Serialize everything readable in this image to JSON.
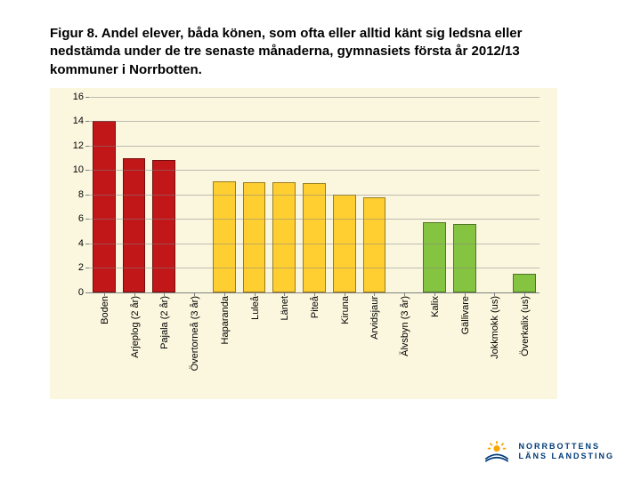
{
  "title": "Figur 8. Andel elever, båda könen, som ofta eller alltid känt sig ledsna eller nedstämda under de tre senaste månaderna, gymnasiets första år 2012/13 kommuner i Norrbotten.",
  "chart": {
    "type": "bar",
    "background_color": "#fbf7df",
    "grid_color": "#7f7f7f",
    "ylim": [
      0,
      16
    ],
    "ytick_step": 2,
    "y_ticks": [
      0,
      2,
      4,
      6,
      8,
      10,
      12,
      14,
      16
    ],
    "label_fontsize": 11,
    "bar_width": 0.62,
    "categories": [
      "Boden",
      "Arjeplog (2 år)",
      "Pajala (2 år)",
      "Övertorneå (3 år)",
      "Haparanda",
      "Luleå",
      "Länet",
      "Piteå",
      "Kiruna",
      "Arvidsjaur",
      "Älvsbyn (3 år)",
      "Kalix",
      "Gällivare",
      "Jokkmokk (us)",
      "Överkalix (us)"
    ],
    "values": [
      14,
      11,
      10.8,
      0,
      9.1,
      9,
      9,
      8.9,
      8,
      7.8,
      0,
      5.7,
      5.6,
      0,
      1.5
    ],
    "bar_colors": [
      "#c11718",
      "#c11718",
      "#c11718",
      "#ffcf32",
      "#ffcf32",
      "#ffcf32",
      "#ffcf32",
      "#ffcf32",
      "#ffcf32",
      "#ffcf32",
      "#ffcf32",
      "#85c441",
      "#85c441",
      "#85c441",
      "#85c441"
    ]
  },
  "logo": {
    "line1": "NORRBOTTENS",
    "line2": "LÄNS LANDSTING",
    "brand_color": "#003a78",
    "accent_color": "#f7a600"
  }
}
